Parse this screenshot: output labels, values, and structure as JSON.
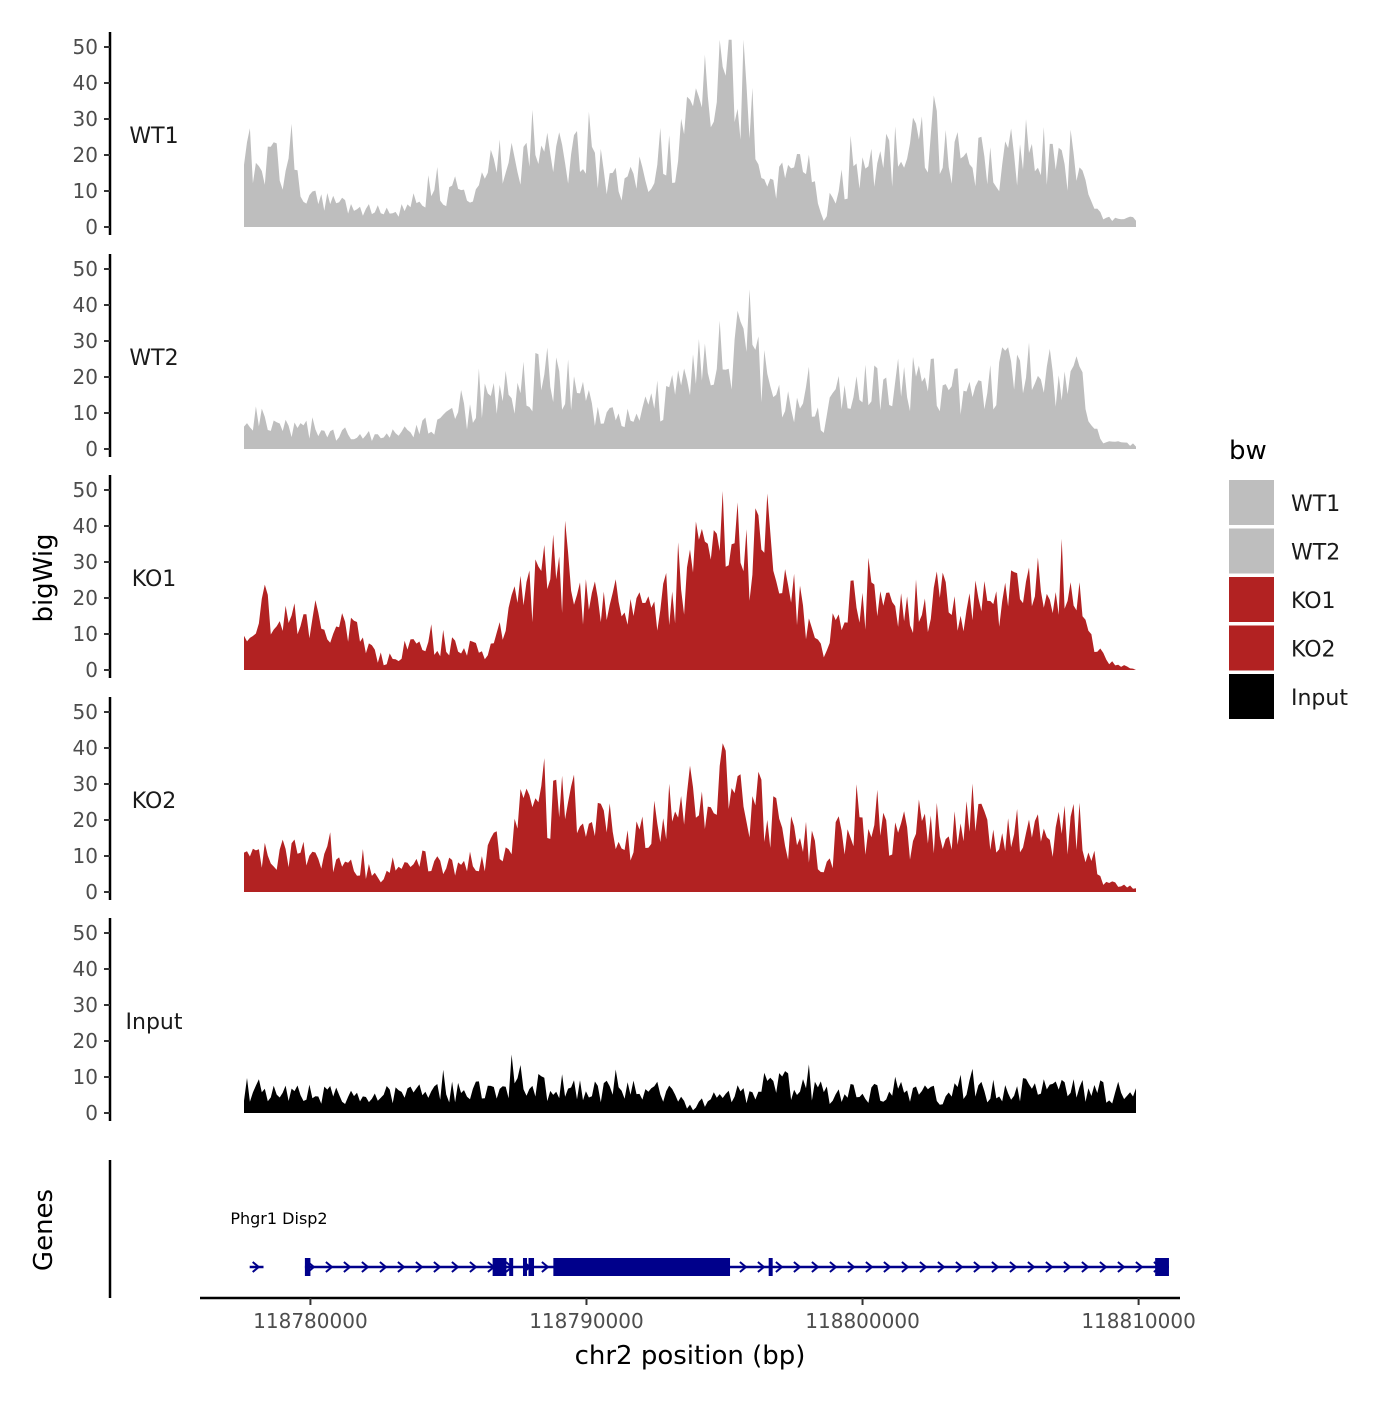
{
  "chart_data": {
    "type": "area",
    "ylabel": "bigWig",
    "xlabel": "chr2 position (bp)",
    "genes_label": "Genes",
    "x_range": [
      118776000,
      118811500
    ],
    "data_x_range": [
      118777800,
      118811200
    ],
    "ylim": [
      0,
      55
    ],
    "y_ticks": [
      0,
      10,
      20,
      30,
      40,
      50
    ],
    "x_ticks": [
      118780000,
      118790000,
      118800000,
      118810000
    ],
    "x_tick_labels": [
      "118780000",
      "118790000",
      "118800000",
      "118810000"
    ],
    "grid": false,
    "legend": {
      "title": "bw",
      "position": "right",
      "entries": [
        {
          "label": "WT1",
          "color": "#BEBEBE"
        },
        {
          "label": "WT2",
          "color": "#BEBEBE"
        },
        {
          "label": "KO1",
          "color": "#B22222"
        },
        {
          "label": "KO2",
          "color": "#B22222"
        },
        {
          "label": "Input",
          "color": "#000000"
        }
      ]
    },
    "tracks": [
      {
        "name": "WT1",
        "color": "#BEBEBE",
        "anchors": [
          [
            118777800,
            13
          ],
          [
            118778000,
            22
          ],
          [
            118778500,
            15
          ],
          [
            118779000,
            19
          ],
          [
            118779500,
            17
          ],
          [
            118780000,
            8
          ],
          [
            118781000,
            8
          ],
          [
            118782000,
            5
          ],
          [
            118783000,
            4
          ],
          [
            118784000,
            6
          ],
          [
            118785000,
            12
          ],
          [
            118786000,
            8
          ],
          [
            118787000,
            16
          ],
          [
            118788000,
            20
          ],
          [
            118789000,
            18
          ],
          [
            118790000,
            20
          ],
          [
            118791000,
            15
          ],
          [
            118792000,
            10
          ],
          [
            118793000,
            18
          ],
          [
            118794000,
            22
          ],
          [
            118795000,
            35
          ],
          [
            118795500,
            42
          ],
          [
            118796000,
            43
          ],
          [
            118796500,
            36
          ],
          [
            118797000,
            14
          ],
          [
            118798000,
            14
          ],
          [
            118799000,
            15
          ],
          [
            118799500,
            2
          ],
          [
            118800000,
            12
          ],
          [
            118801000,
            16
          ],
          [
            118802000,
            19
          ],
          [
            118803000,
            22
          ],
          [
            118804000,
            20
          ],
          [
            118805000,
            19
          ],
          [
            118806000,
            17
          ],
          [
            118807000,
            22
          ],
          [
            118808000,
            19
          ],
          [
            118809000,
            15
          ],
          [
            118809500,
            6
          ],
          [
            118810000,
            2
          ],
          [
            118811200,
            2
          ]
        ]
      },
      {
        "name": "WT2",
        "color": "#BEBEBE",
        "anchors": [
          [
            118777800,
            9
          ],
          [
            118778500,
            8
          ],
          [
            118779000,
            6
          ],
          [
            118780000,
            5
          ],
          [
            118781000,
            4
          ],
          [
            118782000,
            4
          ],
          [
            118783000,
            4
          ],
          [
            118784000,
            5
          ],
          [
            118785000,
            7
          ],
          [
            118786000,
            9
          ],
          [
            118787000,
            14
          ],
          [
            118788000,
            16
          ],
          [
            118789000,
            20
          ],
          [
            118790000,
            17
          ],
          [
            118791000,
            10
          ],
          [
            118792000,
            8
          ],
          [
            118793000,
            12
          ],
          [
            118794000,
            16
          ],
          [
            118795000,
            22
          ],
          [
            118796000,
            28
          ],
          [
            118797000,
            24
          ],
          [
            118798000,
            14
          ],
          [
            118799000,
            12
          ],
          [
            118799500,
            6
          ],
          [
            118800000,
            15
          ],
          [
            118801000,
            17
          ],
          [
            118802000,
            19
          ],
          [
            118803000,
            18
          ],
          [
            118804000,
            17
          ],
          [
            118805000,
            16
          ],
          [
            118806000,
            19
          ],
          [
            118807000,
            21
          ],
          [
            118808000,
            20
          ],
          [
            118809000,
            20
          ],
          [
            118809500,
            8
          ],
          [
            118810000,
            2
          ],
          [
            118811200,
            1
          ]
        ]
      },
      {
        "name": "KO1",
        "color": "#B22222",
        "anchors": [
          [
            118777800,
            10
          ],
          [
            118778500,
            16
          ],
          [
            118779000,
            12
          ],
          [
            118780000,
            15
          ],
          [
            118781000,
            12
          ],
          [
            118782000,
            10
          ],
          [
            118782500,
            6
          ],
          [
            118783000,
            2
          ],
          [
            118784000,
            6
          ],
          [
            118785000,
            7
          ],
          [
            118786000,
            6
          ],
          [
            118787000,
            5
          ],
          [
            118788000,
            17
          ],
          [
            118789000,
            24
          ],
          [
            118790000,
            28
          ],
          [
            118790500,
            22
          ],
          [
            118791000,
            18
          ],
          [
            118792000,
            18
          ],
          [
            118793000,
            16
          ],
          [
            118794000,
            24
          ],
          [
            118795000,
            33
          ],
          [
            118796000,
            36
          ],
          [
            118797000,
            32
          ],
          [
            118798000,
            22
          ],
          [
            118799000,
            14
          ],
          [
            118799500,
            4
          ],
          [
            118800000,
            16
          ],
          [
            118801000,
            18
          ],
          [
            118802000,
            17
          ],
          [
            118803000,
            18
          ],
          [
            118804000,
            20
          ],
          [
            118805000,
            17
          ],
          [
            118806000,
            18
          ],
          [
            118807000,
            21
          ],
          [
            118808000,
            19
          ],
          [
            118809000,
            22
          ],
          [
            118809500,
            10
          ],
          [
            118810000,
            3
          ],
          [
            118811200,
            0
          ]
        ]
      },
      {
        "name": "KO2",
        "color": "#B22222",
        "anchors": [
          [
            118777800,
            9
          ],
          [
            118778500,
            10
          ],
          [
            118779000,
            11
          ],
          [
            118780000,
            12
          ],
          [
            118781000,
            9
          ],
          [
            118782000,
            8
          ],
          [
            118783000,
            3
          ],
          [
            118784000,
            9
          ],
          [
            118785000,
            8
          ],
          [
            118786000,
            7
          ],
          [
            118787000,
            10
          ],
          [
            118788000,
            20
          ],
          [
            118789000,
            26
          ],
          [
            118790000,
            24
          ],
          [
            118791000,
            22
          ],
          [
            118792000,
            14
          ],
          [
            118793000,
            21
          ],
          [
            118794000,
            23
          ],
          [
            118795000,
            28
          ],
          [
            118796000,
            30
          ],
          [
            118797000,
            26
          ],
          [
            118798000,
            16
          ],
          [
            118799000,
            14
          ],
          [
            118799500,
            4
          ],
          [
            118800000,
            15
          ],
          [
            118801000,
            16
          ],
          [
            118802000,
            17
          ],
          [
            118803000,
            16
          ],
          [
            118804000,
            20
          ],
          [
            118805000,
            18
          ],
          [
            118806000,
            16
          ],
          [
            118807000,
            19
          ],
          [
            118808000,
            17
          ],
          [
            118809000,
            19
          ],
          [
            118809500,
            8
          ],
          [
            118810000,
            3
          ],
          [
            118811200,
            1
          ]
        ]
      },
      {
        "name": "Input",
        "color": "#000000",
        "anchors": [
          [
            118777800,
            7
          ],
          [
            118778500,
            6
          ],
          [
            118779000,
            5
          ],
          [
            118780000,
            6
          ],
          [
            118781000,
            5
          ],
          [
            118782000,
            4
          ],
          [
            118783000,
            5
          ],
          [
            118784000,
            5
          ],
          [
            118785000,
            6
          ],
          [
            118786000,
            6
          ],
          [
            118787000,
            6
          ],
          [
            118788000,
            9
          ],
          [
            118789000,
            7
          ],
          [
            118790000,
            7
          ],
          [
            118791000,
            6
          ],
          [
            118792000,
            6
          ],
          [
            118793000,
            6
          ],
          [
            118794000,
            5
          ],
          [
            118794600,
            1
          ],
          [
            118795000,
            3
          ],
          [
            118796000,
            5
          ],
          [
            118797000,
            5
          ],
          [
            118798000,
            8
          ],
          [
            118799000,
            7
          ],
          [
            118800000,
            5
          ],
          [
            118801000,
            6
          ],
          [
            118802000,
            5
          ],
          [
            118803000,
            5
          ],
          [
            118804000,
            5
          ],
          [
            118805000,
            7
          ],
          [
            118806000,
            6
          ],
          [
            118807000,
            7
          ],
          [
            118808000,
            6
          ],
          [
            118809000,
            6
          ],
          [
            118810000,
            6
          ],
          [
            118811200,
            5
          ]
        ]
      }
    ],
    "genes": [
      {
        "name": "Phgr1",
        "strand": "+",
        "start": 118777800,
        "end": 118778300
      },
      {
        "name": "Disp2",
        "strand": "+",
        "start": 118779800,
        "end": 118811100,
        "exons": [
          [
            118779800,
            118780000
          ],
          [
            118786600,
            118787100
          ],
          [
            118787200,
            118787300
          ],
          [
            118787700,
            118787800
          ],
          [
            118787900,
            118788100
          ],
          [
            118788800,
            118795200
          ],
          [
            118796600,
            118796700
          ],
          [
            118810600,
            118811100
          ]
        ]
      }
    ]
  }
}
